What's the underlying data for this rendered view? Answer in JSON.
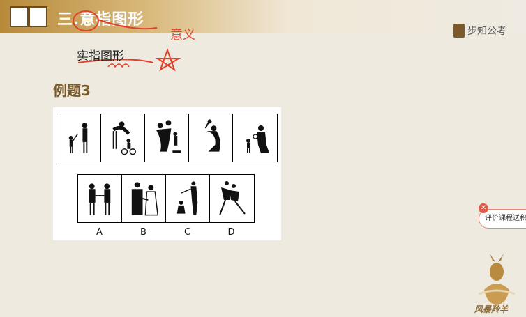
{
  "header": {
    "section_title": "三.意指图形",
    "icon": "book-icon"
  },
  "brand": {
    "name": "步知公考",
    "icon": "brand-logo-icon"
  },
  "content": {
    "subtitle": "实指图形",
    "annotation_text": "意义",
    "example_title": "例题3"
  },
  "figure": {
    "top_row_cells": [
      "figure-1",
      "figure-2",
      "figure-3",
      "figure-4",
      "figure-5"
    ],
    "options": [
      "A",
      "B",
      "C",
      "D"
    ]
  },
  "feedback": {
    "label": "评价课程送积分",
    "close_icon": "close-icon"
  },
  "mascot": {
    "text": "风暴羚羊"
  },
  "colors": {
    "accent": "#7a5a2a",
    "header_gold": "#c89b4a",
    "annotation_red": "#e2402a"
  }
}
